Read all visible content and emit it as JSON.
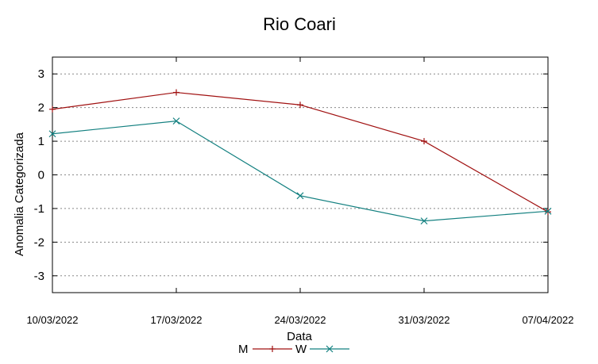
{
  "chart_data": {
    "type": "line",
    "title": "Rio Coari",
    "xlabel": "Data",
    "ylabel": "Anomalia Categorizada",
    "categories": [
      "10/03/2022",
      "17/03/2022",
      "24/03/2022",
      "31/03/2022",
      "07/04/2022"
    ],
    "ylim": [
      -3.5,
      3.5
    ],
    "yticks": [
      "-3",
      "-2",
      "-1",
      "0",
      "1",
      "2",
      "3"
    ],
    "grid": true,
    "legend_position": "bottom-center",
    "series": [
      {
        "name": "M",
        "color": "#a01010",
        "marker": "plus",
        "values": [
          1.95,
          2.45,
          2.08,
          1.0,
          -1.1
        ]
      },
      {
        "name": "W",
        "color": "#138080",
        "marker": "cross",
        "values": [
          1.22,
          1.6,
          -0.62,
          -1.37,
          -1.08
        ]
      }
    ]
  }
}
